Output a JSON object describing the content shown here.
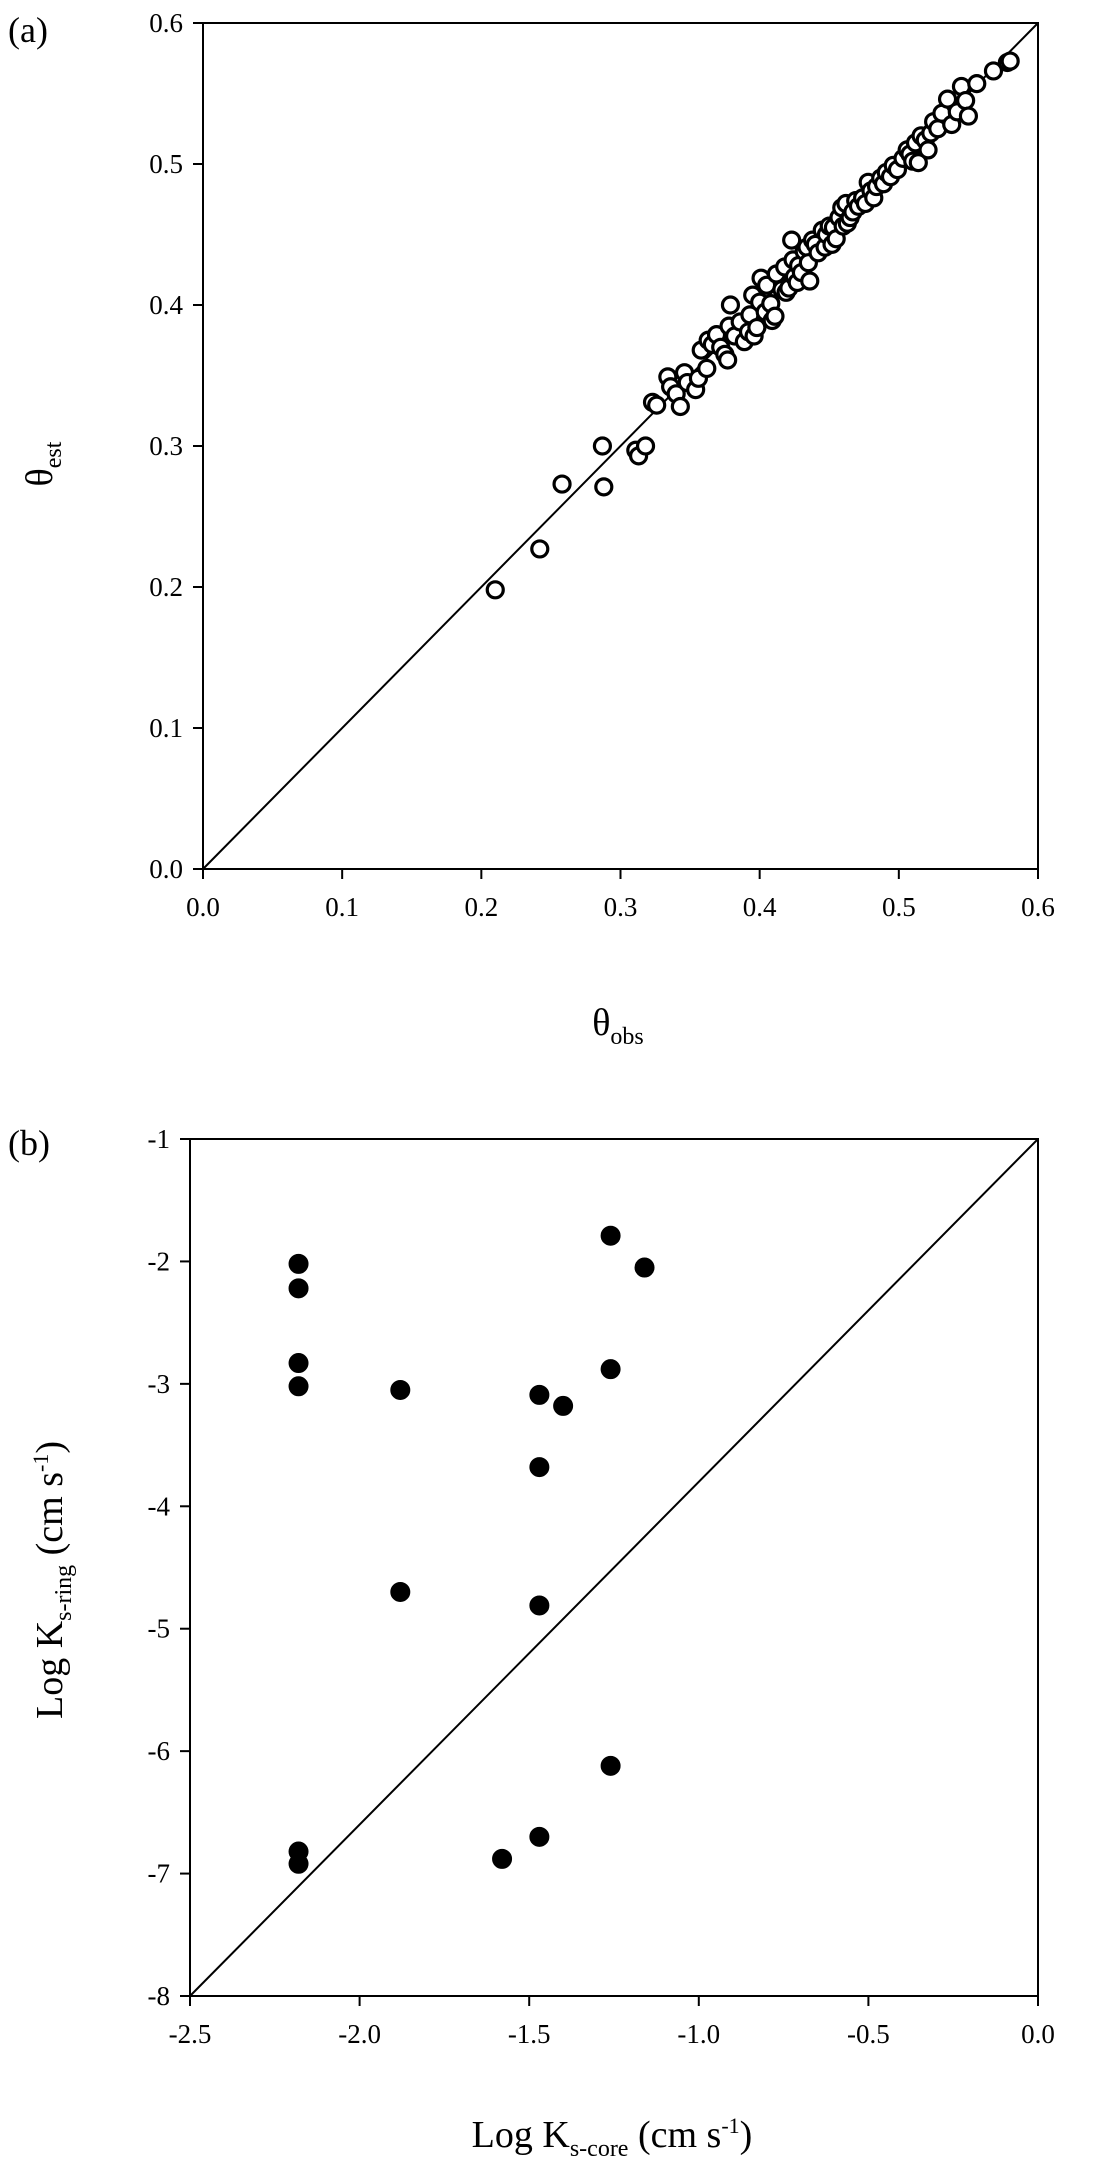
{
  "chart_data": [
    {
      "type": "scatter",
      "panel_label": "(a)",
      "xlabel": {
        "main": "θ",
        "sub": "obs"
      },
      "ylabel": {
        "main": "θ",
        "sub": "est"
      },
      "xlim": [
        0.0,
        0.6
      ],
      "ylim": [
        0.0,
        0.6
      ],
      "x_ticks": [
        "0.0",
        "0.1",
        "0.2",
        "0.3",
        "0.4",
        "0.5",
        "0.6"
      ],
      "y_ticks": [
        "0.0",
        "0.1",
        "0.2",
        "0.3",
        "0.4",
        "0.5",
        "0.6"
      ],
      "reference_line": "1:1",
      "marker": "open-circle",
      "grid": false,
      "series": [
        {
          "points": [
            [
              0.21,
              0.198
            ],
            [
              0.242,
              0.227
            ],
            [
              0.258,
              0.273
            ],
            [
              0.287,
              0.3
            ],
            [
              0.288,
              0.271
            ],
            [
              0.311,
              0.297
            ],
            [
              0.313,
              0.293
            ],
            [
              0.318,
              0.3
            ],
            [
              0.323,
              0.331
            ],
            [
              0.326,
              0.329
            ],
            [
              0.334,
              0.349
            ],
            [
              0.336,
              0.342
            ],
            [
              0.34,
              0.337
            ],
            [
              0.343,
              0.328
            ],
            [
              0.346,
              0.352
            ],
            [
              0.348,
              0.345
            ],
            [
              0.354,
              0.34
            ],
            [
              0.356,
              0.348
            ],
            [
              0.358,
              0.368
            ],
            [
              0.362,
              0.355
            ],
            [
              0.363,
              0.375
            ],
            [
              0.366,
              0.372
            ],
            [
              0.369,
              0.379
            ],
            [
              0.372,
              0.37
            ],
            [
              0.375,
              0.365
            ],
            [
              0.377,
              0.361
            ],
            [
              0.378,
              0.385
            ],
            [
              0.379,
              0.4
            ],
            [
              0.382,
              0.378
            ],
            [
              0.386,
              0.388
            ],
            [
              0.389,
              0.374
            ],
            [
              0.392,
              0.381
            ],
            [
              0.393,
              0.393
            ],
            [
              0.395,
              0.407
            ],
            [
              0.396,
              0.378
            ],
            [
              0.398,
              0.384
            ],
            [
              0.4,
              0.402
            ],
            [
              0.401,
              0.419
            ],
            [
              0.404,
              0.395
            ],
            [
              0.405,
              0.414
            ],
            [
              0.408,
              0.401
            ],
            [
              0.409,
              0.389
            ],
            [
              0.411,
              0.392
            ],
            [
              0.412,
              0.422
            ],
            [
              0.416,
              0.411
            ],
            [
              0.418,
              0.427
            ],
            [
              0.419,
              0.409
            ],
            [
              0.421,
              0.412
            ],
            [
              0.423,
              0.446
            ],
            [
              0.424,
              0.432
            ],
            [
              0.425,
              0.42
            ],
            [
              0.427,
              0.416
            ],
            [
              0.428,
              0.428
            ],
            [
              0.43,
              0.423
            ],
            [
              0.432,
              0.438
            ],
            [
              0.434,
              0.441
            ],
            [
              0.435,
              0.43
            ],
            [
              0.436,
              0.417
            ],
            [
              0.438,
              0.446
            ],
            [
              0.44,
              0.443
            ],
            [
              0.442,
              0.437
            ],
            [
              0.445,
              0.453
            ],
            [
              0.447,
              0.441
            ],
            [
              0.448,
              0.45
            ],
            [
              0.45,
              0.456
            ],
            [
              0.452,
              0.443
            ],
            [
              0.453,
              0.455
            ],
            [
              0.455,
              0.447
            ],
            [
              0.457,
              0.462
            ],
            [
              0.459,
              0.469
            ],
            [
              0.46,
              0.456
            ],
            [
              0.462,
              0.472
            ],
            [
              0.463,
              0.458
            ],
            [
              0.465,
              0.462
            ],
            [
              0.467,
              0.466
            ],
            [
              0.469,
              0.474
            ],
            [
              0.471,
              0.47
            ],
            [
              0.474,
              0.476
            ],
            [
              0.476,
              0.472
            ],
            [
              0.478,
              0.487
            ],
            [
              0.48,
              0.481
            ],
            [
              0.482,
              0.476
            ],
            [
              0.484,
              0.484
            ],
            [
              0.487,
              0.49
            ],
            [
              0.489,
              0.486
            ],
            [
              0.491,
              0.494
            ],
            [
              0.494,
              0.491
            ],
            [
              0.496,
              0.499
            ],
            [
              0.499,
              0.496
            ],
            [
              0.503,
              0.504
            ],
            [
              0.506,
              0.51
            ],
            [
              0.508,
              0.507
            ],
            [
              0.51,
              0.502
            ],
            [
              0.512,
              0.515
            ],
            [
              0.514,
              0.501
            ],
            [
              0.516,
              0.52
            ],
            [
              0.519,
              0.517
            ],
            [
              0.521,
              0.51
            ],
            [
              0.523,
              0.522
            ],
            [
              0.525,
              0.53
            ],
            [
              0.528,
              0.525
            ],
            [
              0.531,
              0.536
            ],
            [
              0.535,
              0.546
            ],
            [
              0.538,
              0.528
            ],
            [
              0.542,
              0.537
            ],
            [
              0.545,
              0.555
            ],
            [
              0.548,
              0.545
            ],
            [
              0.55,
              0.534
            ],
            [
              0.556,
              0.557
            ],
            [
              0.568,
              0.566
            ],
            [
              0.578,
              0.572
            ],
            [
              0.58,
              0.573
            ]
          ]
        }
      ]
    },
    {
      "type": "scatter",
      "panel_label": "(b)",
      "xlabel": {
        "main": "Log K",
        "sub": "s-core",
        "after": " (cm s",
        "sup": "-1",
        "close": ")"
      },
      "ylabel": {
        "main": "Log K",
        "sub": "s-ring",
        "after": " (cm s",
        "sup": "-1",
        "close": ")"
      },
      "xlim": [
        -2.5,
        0.0
      ],
      "ylim": [
        -8,
        -1
      ],
      "x_ticks": [
        "-2.5",
        "-2.0",
        "-1.5",
        "-1.0",
        "-0.5",
        "0.0"
      ],
      "y_ticks": [
        "-8",
        "-7",
        "-6",
        "-5",
        "-4",
        "-3",
        "-2",
        "-1"
      ],
      "reference_line": "1:1",
      "marker": "filled-circle",
      "grid": false,
      "series": [
        {
          "points": [
            [
              -2.18,
              -2.02
            ],
            [
              -2.18,
              -2.22
            ],
            [
              -2.18,
              -2.83
            ],
            [
              -2.18,
              -3.02
            ],
            [
              -2.18,
              -6.82
            ],
            [
              -2.18,
              -6.92
            ],
            [
              -1.88,
              -3.05
            ],
            [
              -1.88,
              -4.7
            ],
            [
              -1.58,
              -6.88
            ],
            [
              -1.47,
              -3.09
            ],
            [
              -1.47,
              -3.68
            ],
            [
              -1.47,
              -4.81
            ],
            [
              -1.47,
              -6.7
            ],
            [
              -1.4,
              -3.18
            ],
            [
              -1.26,
              -1.79
            ],
            [
              -1.26,
              -2.88
            ],
            [
              -1.26,
              -6.12
            ],
            [
              -1.16,
              -2.05
            ]
          ]
        }
      ]
    }
  ]
}
